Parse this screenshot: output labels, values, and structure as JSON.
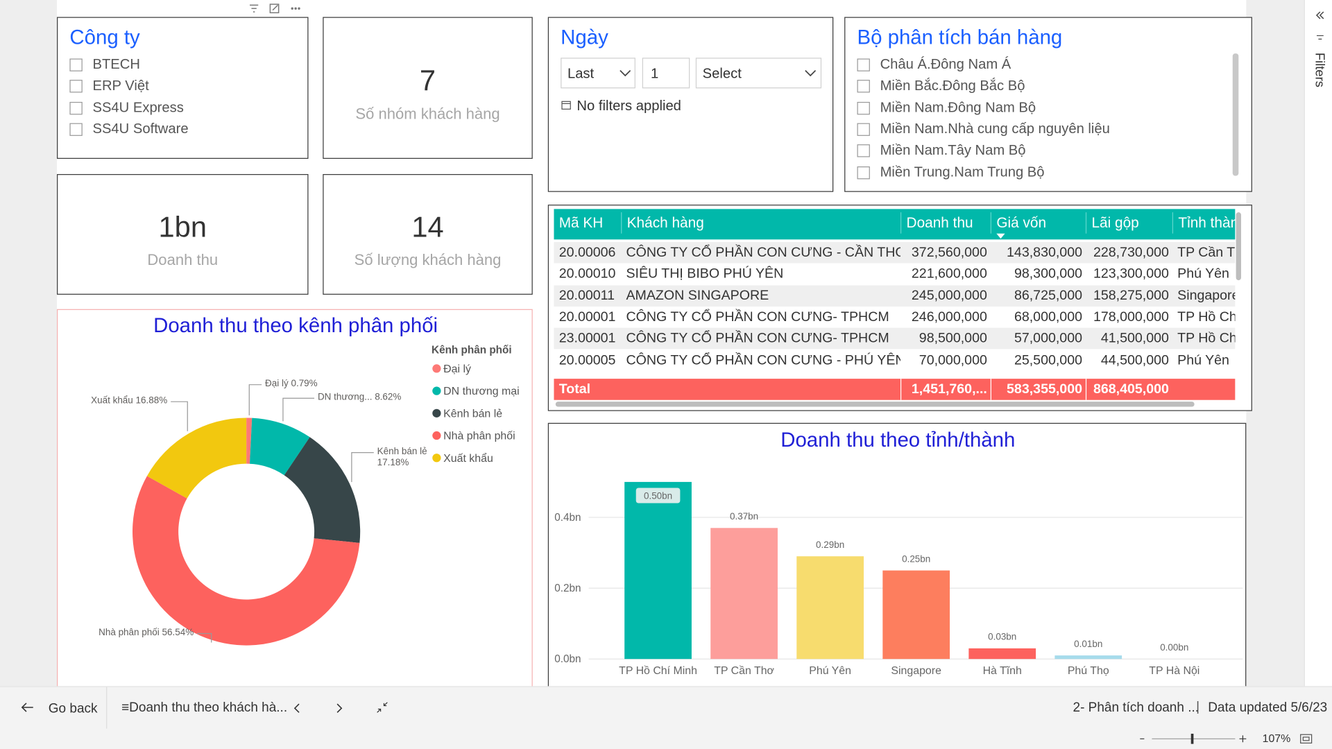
{
  "company_slicer": {
    "title": "Công ty",
    "options": [
      "BTECH",
      "ERP Việt",
      "SS4U Express",
      "SS4U Software"
    ]
  },
  "cards": [
    {
      "value": 7,
      "label": "Số nhóm khách hàng"
    },
    {
      "value": "1bn",
      "label": "Doanh thu"
    },
    {
      "value": 14,
      "label": "Số lượng khách hàng"
    }
  ],
  "date_slicer": {
    "title": "Ngày",
    "period": "Last",
    "count": 1,
    "unit": "Select",
    "status": "No filters applied"
  },
  "analysis_slicer": {
    "title": "Bộ phân tích bán hàng",
    "options": [
      "Châu Á.Đông Nam Á",
      "Miền Bắc.Đông Bắc Bộ",
      "Miền Nam.Đông Nam Bộ",
      "Miền Nam.Nhà cung cấp nguyên liệu",
      "Miền Nam.Tây Nam Bộ",
      "Miền Trung.Nam Trung Bộ"
    ]
  },
  "table": {
    "columns": [
      "Mã KH",
      "Khách hàng",
      "Doanh thu",
      "Giá vốn",
      "Lãi gộp",
      "Tỉnh thành"
    ],
    "rows": [
      [
        "20.00006",
        "CÔNG TY CỔ PHẦN CON CƯNG - CẦN THƠ",
        "372,560,000",
        "143,830,000",
        "228,730,000",
        "TP Cần Thơ"
      ],
      [
        "20.00010",
        "SIÊU THỊ BIBO PHÚ YÊN",
        "221,600,000",
        "98,300,000",
        "123,300,000",
        "Phú Yên"
      ],
      [
        "20.00011",
        "AMAZON SINGAPORE",
        "245,000,000",
        "86,725,000",
        "158,275,000",
        "Singapore"
      ],
      [
        "20.00001",
        "CÔNG TY CỔ PHẦN CON CƯNG- TPHCM",
        "246,000,000",
        "68,000,000",
        "178,000,000",
        "TP Hồ Chí Minh"
      ],
      [
        "23.00001",
        "CÔNG TY CỔ PHẦN CON CƯNG- TPHCM",
        "98,500,000",
        "57,000,000",
        "41,500,000",
        "TP Hồ Chí Minh"
      ],
      [
        "20.00005",
        "CÔNG TY CỔ PHẦN CON CƯNG - PHÚ YÊN",
        "70,000,000",
        "25,500,000",
        "44,500,000",
        "Phú Yên"
      ]
    ],
    "total": {
      "label": "Total",
      "values": [
        "1,451,760,...",
        "583,355,000",
        "868,405,000"
      ]
    }
  },
  "chart_data": [
    {
      "type": "donut",
      "title": "Doanh thu theo kênh phân phối",
      "legend_title": "Kênh phân phối",
      "categories": [
        "Đại lý",
        "DN thương mại",
        "Kênh bán lẻ",
        "Nhà phân phối",
        "Xuất khẩu"
      ],
      "values": [
        0.79,
        8.62,
        17.18,
        56.54,
        16.88
      ],
      "value_labels": [
        "Đại lý 0.79%",
        "DN thương... 8.62%",
        "Kênh bán lẻ 17.18%",
        "Nhà phân phối 56.54%",
        "Xuất khẩu 16.88%"
      ],
      "colors": [
        "#FD7976",
        "#01B8AA",
        "#374649",
        "#FD625E",
        "#F2C80F"
      ]
    },
    {
      "type": "bar",
      "title": "Doanh thu theo tỉnh/thành",
      "categories": [
        "TP Hồ Chí Minh",
        "TP Cần Thơ",
        "Phú Yên",
        "Singapore",
        "Hà Tĩnh",
        "Phú Thọ",
        "TP Hà Nội"
      ],
      "values": [
        0.5,
        0.37,
        0.29,
        0.25,
        0.03,
        0.01,
        0.0
      ],
      "value_labels": [
        "0.50bn",
        "0.37bn",
        "0.29bn",
        "0.25bn",
        "0.03bn",
        "0.01bn",
        "0.00bn"
      ],
      "colors": [
        "#01B8AA",
        "#FD9E9B",
        "#F7DC6E",
        "#FD7E5E",
        "#FD625E",
        "#A6DBEB",
        "#FD625E"
      ],
      "ylim": [
        0,
        0.53
      ],
      "yticks": [
        {
          "value": 0,
          "label": "0.0bn"
        },
        {
          "value": 0.2,
          "label": "0.2bn"
        },
        {
          "value": 0.4,
          "label": "0.4bn"
        }
      ],
      "grid": true
    }
  ],
  "footer": {
    "back": "Go back",
    "page": "≡Doanh thu theo khách hà...",
    "report": "2- Phân tích doanh ...",
    "separator": "|",
    "updated": "Data updated 5/6/23",
    "zoom": "107%"
  },
  "filters_pane": {
    "label": "Filters"
  }
}
